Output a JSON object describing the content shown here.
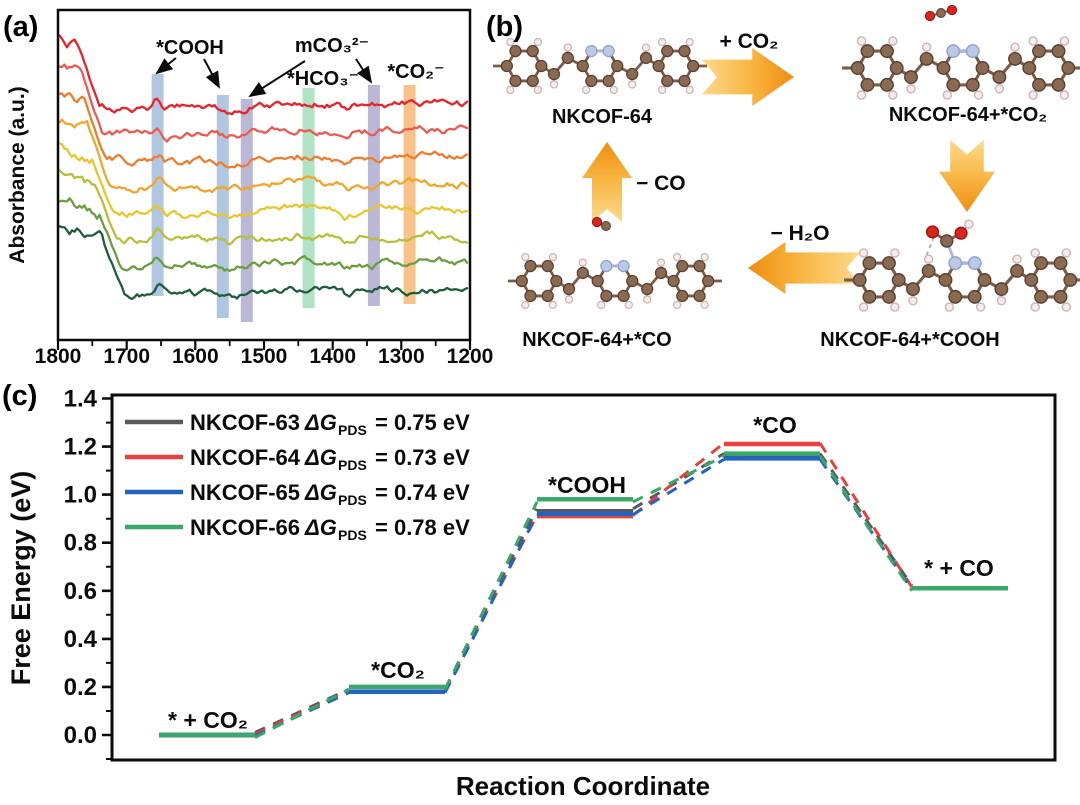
{
  "panel_a": {
    "label": "(a)",
    "ylabel": "Absorbance (a.u.)",
    "x_ticks": [
      "1800",
      "1700",
      "1600",
      "1500",
      "1400",
      "1300",
      "1200"
    ],
    "annotations": {
      "cooh": "*COOH",
      "mco3": "mCO₃²⁻",
      "hco3": "*HCO₃⁻",
      "co2": "*CO₂⁻"
    },
    "annotation_colors": {
      "cooh": "#3d5f9b",
      "mco3": "#7b74c4",
      "hco3": "#33a065",
      "co2": "#f59523"
    }
  },
  "panel_b": {
    "label": "(b)",
    "molecules": {
      "m1": "NKCOF-64",
      "m2": "NKCOF-64+*CO₂",
      "m3": "NKCOF-64+*COOH",
      "m4": "NKCOF-64+*CO"
    },
    "arrows": {
      "plus_co2": "+ CO₂",
      "minus_co": "− CO",
      "minus_h2o": "− H₂O"
    }
  },
  "panel_c": {
    "label": "(c)",
    "ylabel": "Free Energy (eV)",
    "xlabel": "Reaction Coordinate",
    "y_ticks": [
      "0.0",
      "0.2",
      "0.4",
      "0.6",
      "0.8",
      "1.0",
      "1.2",
      "1.4"
    ],
    "legend": [
      {
        "name": "NKCOF-63",
        "dg": "ΔG",
        "sub": "PDS",
        "value": "= 0.75 eV",
        "color": "#595959"
      },
      {
        "name": "NKCOF-64",
        "dg": "ΔG",
        "sub": "PDS",
        "value": "= 0.73 eV",
        "color": "#e8403c"
      },
      {
        "name": "NKCOF-65",
        "dg": "ΔG",
        "sub": "PDS",
        "value": "= 0.74 eV",
        "color": "#2563c0"
      },
      {
        "name": "NKCOF-66",
        "dg": "ΔG",
        "sub": "PDS",
        "value": "= 0.78 eV",
        "color": "#3aa86b"
      }
    ]
  },
  "chart_data": [
    {
      "type": "line",
      "panel": "a",
      "description": "Stacked in-situ FTIR spectra (8 offset traces, top to bottom) over 1800–1200 cm⁻¹ with highlighted vibrational bands",
      "ylabel": "Absorbance (a.u.)",
      "x_axis": {
        "ticks": [
          1800,
          1700,
          1600,
          1500,
          1400,
          1300,
          1200
        ],
        "reversed": true
      },
      "series": [
        {
          "name": "spectrum-1",
          "color": "#e8232b"
        },
        {
          "name": "spectrum-2",
          "color": "#ee5a52"
        },
        {
          "name": "spectrum-3",
          "color": "#ee7d2d"
        },
        {
          "name": "spectrum-4",
          "color": "#f2a52b"
        },
        {
          "name": "spectrum-5",
          "color": "#e9c52e"
        },
        {
          "name": "spectrum-6",
          "color": "#b8bf3a"
        },
        {
          "name": "spectrum-7",
          "color": "#6d9c41"
        },
        {
          "name": "spectrum-8",
          "color": "#1d5e3d"
        }
      ],
      "bands": [
        {
          "assignment": "*COOH",
          "wavenumber": 1655,
          "color": "#9db9da"
        },
        {
          "assignment": "*COOH",
          "wavenumber": 1560,
          "color": "#9db9da"
        },
        {
          "assignment": "mCO₃²⁻",
          "wavenumber": 1525,
          "color": "#a9a5cd"
        },
        {
          "assignment": "*HCO₃⁻",
          "wavenumber": 1435,
          "color": "#9bdcb5"
        },
        {
          "assignment": "mCO₃²⁻",
          "wavenumber": 1340,
          "color": "#a9a5cd"
        },
        {
          "assignment": "*CO₂⁻",
          "wavenumber": 1288,
          "color": "#f6b36b"
        }
      ]
    },
    {
      "type": "line",
      "panel": "c",
      "subtype": "free-energy-diagram",
      "xlabel": "Reaction Coordinate",
      "ylabel": "Free Energy (eV)",
      "ylim": [
        -0.1,
        1.41
      ],
      "y_tick_step": 0.2,
      "grid": false,
      "legend_position": "top-left",
      "line_style": "solid horizontal levels joined by dashed connectors",
      "categories": [
        "* + CO₂",
        "*CO₂",
        "*COOH",
        "*CO",
        "* + CO"
      ],
      "series": [
        {
          "name": "NKCOF-63",
          "color": "#595959",
          "dG_PDS_eV": 0.75,
          "values": [
            0.0,
            0.18,
            0.93,
            1.16,
            0.61
          ]
        },
        {
          "name": "NKCOF-64",
          "color": "#e8403c",
          "dG_PDS_eV": 0.73,
          "values": [
            0.0,
            0.18,
            0.91,
            1.21,
            0.61
          ]
        },
        {
          "name": "NKCOF-65",
          "color": "#2563c0",
          "dG_PDS_eV": 0.74,
          "values": [
            0.0,
            0.18,
            0.92,
            1.15,
            0.61
          ]
        },
        {
          "name": "NKCOF-66",
          "color": "#3aa86b",
          "dG_PDS_eV": 0.78,
          "values": [
            0.0,
            0.2,
            0.98,
            1.17,
            0.61
          ]
        }
      ]
    }
  ]
}
